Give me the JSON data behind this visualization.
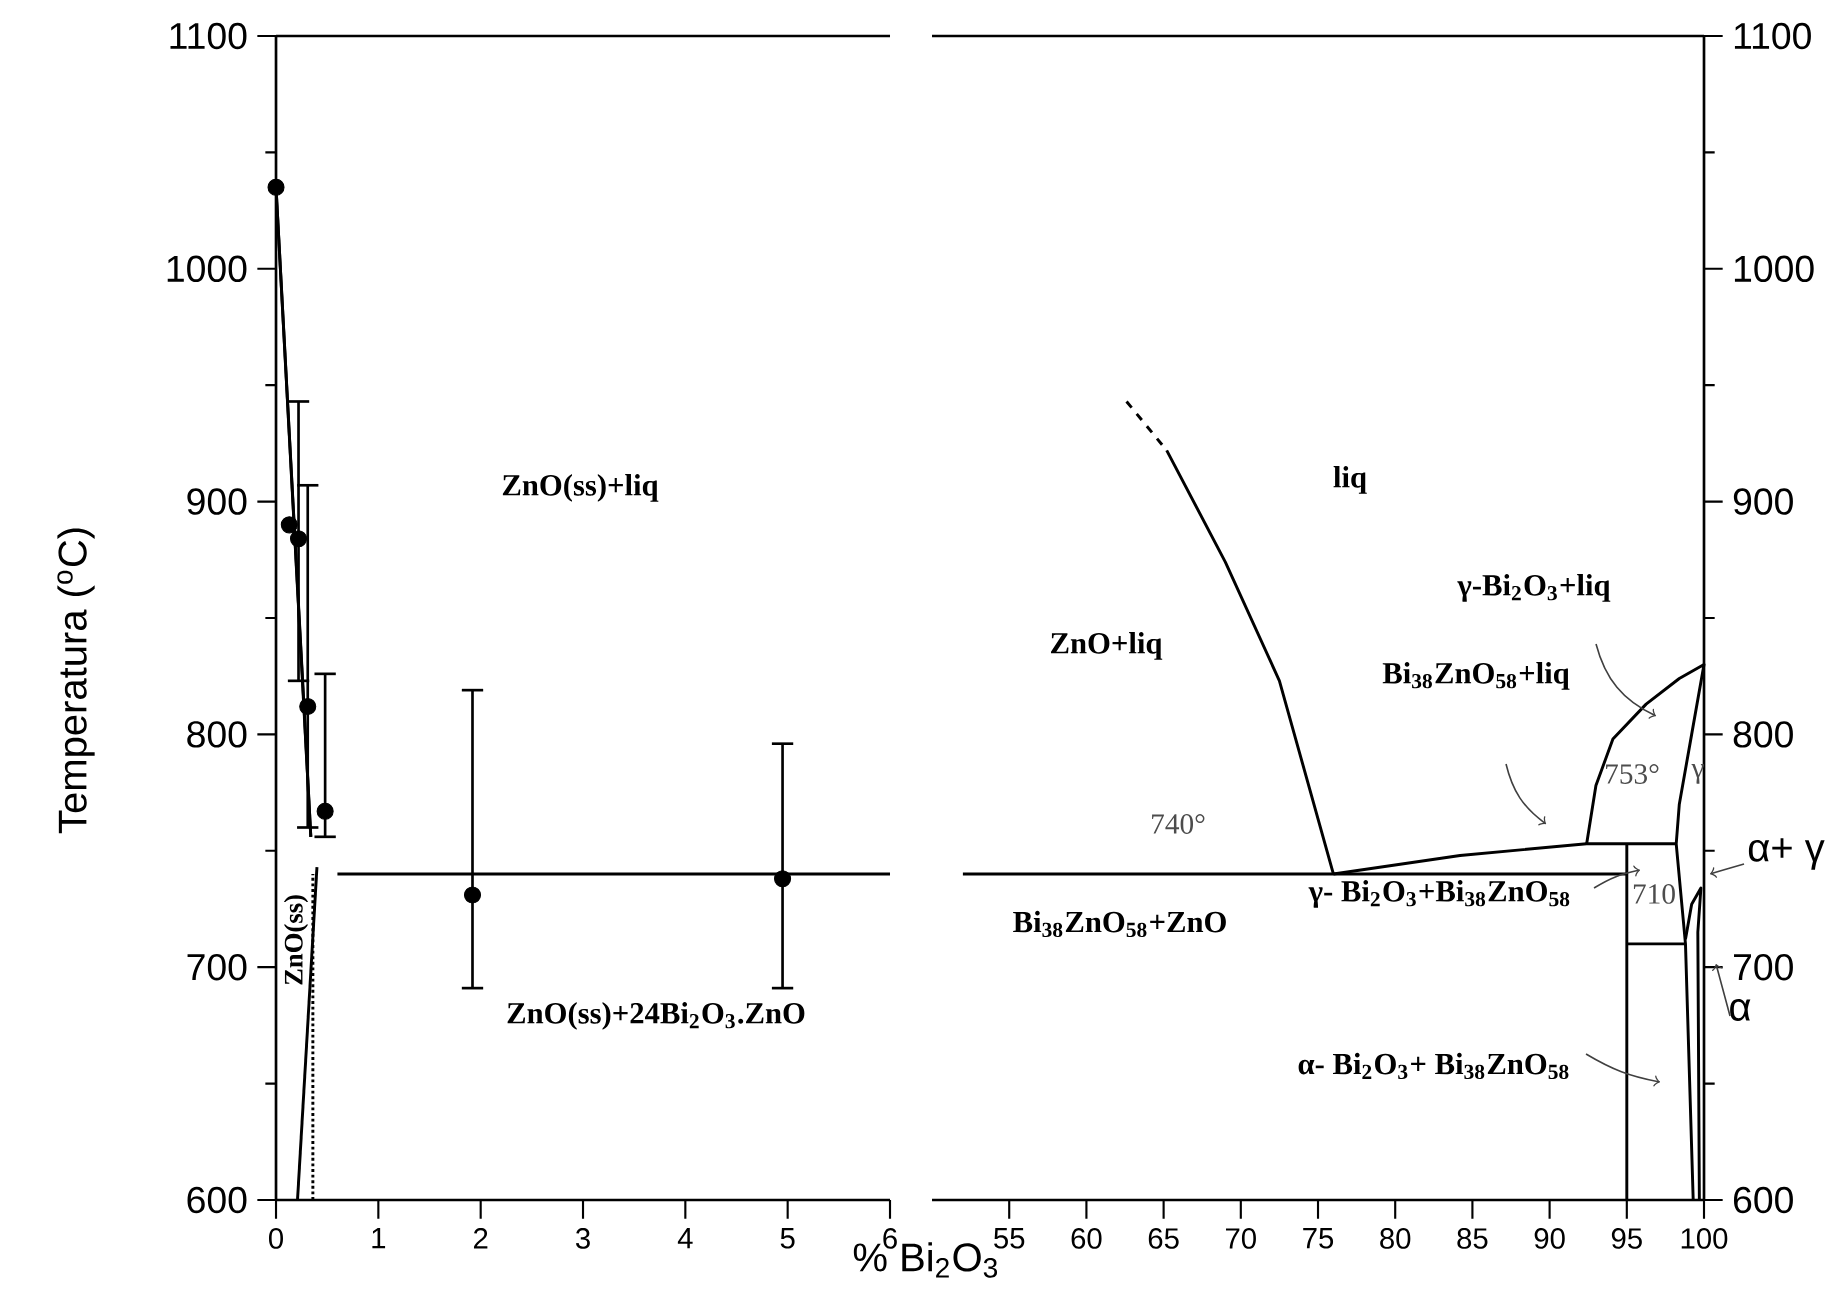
{
  "chart_data": [
    {
      "type": "line",
      "ylabel": "Temperatura ($^{o}$C)",
      "xlabel": "% Bi$_{2}$O$_{3}$",
      "xlim": [
        0,
        6
      ],
      "ylim": [
        600,
        1100
      ],
      "xticks": [
        0,
        1,
        2,
        3,
        4,
        5,
        6
      ],
      "yticks": [
        600,
        700,
        800,
        900,
        1000,
        1100
      ],
      "series": [
        {
          "type": "scatter",
          "marker": "circle",
          "color": "#000000",
          "x": [
            0,
            0.13,
            0.22,
            0.31,
            0.48,
            1.92,
            4.95
          ],
          "values": [
            1035,
            890,
            884,
            812,
            767,
            731,
            738
          ],
          "errors": [
            null,
            null,
            [
              823,
              943
            ],
            [
              760,
              907
            ],
            [
              756,
              826
            ],
            [
              691,
              819
            ],
            [
              691,
              796
            ]
          ]
        },
        {
          "color": "#000000",
          "x": [
            0,
            0.34
          ],
          "values": [
            1035,
            756
          ]
        },
        {
          "color": "#000000",
          "x": [
            0,
            0.26,
            0.34
          ],
          "values": [
            1035,
            823,
            756
          ]
        },
        {
          "color": "#000000",
          "x": [
            0.6,
            6
          ],
          "values": [
            740,
            740
          ]
        },
        {
          "color": "#000000",
          "x": [
            0.21,
            0.4
          ],
          "values": [
            600,
            743
          ]
        },
        {
          "color": "#000000",
          "line_style": "dotted",
          "x": [
            0.36,
            0.36
          ],
          "values": [
            600,
            740
          ]
        }
      ],
      "annotations": [
        "ZnO(ss)+liq",
        "ZnO(ss)",
        "ZnO(ss)+24Bi$_{2}$O$_{3}$.ZnO"
      ]
    },
    {
      "type": "line",
      "xlim": [
        50,
        100
      ],
      "ylim": [
        600,
        1100
      ],
      "xticks": [
        55,
        60,
        65,
        70,
        75,
        80,
        85,
        90,
        95,
        100
      ],
      "yticks": [
        600,
        700,
        800,
        900,
        1000,
        1100
      ],
      "series": [
        {
          "color": "#000000",
          "line_style": "dashed",
          "x": [
            62.6,
            65.2
          ],
          "values": [
            943,
            922
          ]
        },
        {
          "color": "#000000",
          "x": [
            65.2,
            69.0,
            72.5,
            76
          ],
          "values": [
            922,
            874,
            823,
            740
          ]
        },
        {
          "color": "#000000",
          "x": [
            52,
            95
          ],
          "values": [
            740,
            740
          ]
        },
        {
          "color": "#000000",
          "x": [
            76,
            84.2,
            92.4,
            98.2
          ],
          "values": [
            740,
            748,
            753,
            753
          ]
        },
        {
          "color": "#000000",
          "x": [
            92.4,
            93,
            94.1,
            96.25,
            98.4,
            100,
            99.2,
            98.4,
            98.2,
            98.8,
            99.3
          ],
          "values": [
            753,
            778,
            798,
            813,
            824,
            830,
            800,
            770,
            753,
            710,
            600
          ]
        },
        {
          "color": "#000000",
          "x": [
            95,
            95
          ],
          "values": [
            600,
            753
          ]
        },
        {
          "color": "#000000",
          "x": [
            95,
            98.8
          ],
          "values": [
            710,
            710
          ]
        },
        {
          "color": "#000000",
          "x": [
            98.8,
            99.2,
            99.8,
            99.6,
            99.7
          ],
          "values": [
            712,
            727,
            734,
            715,
            600
          ]
        }
      ],
      "annotations": [
        "liq",
        "ZnO+liq",
        "γ-Bi$_{2}$O$_{3}$+liq",
        "Bi$_{38}$ZnO$_{58}$+liq",
        "740°",
        "Bi$_{38}$ZnO$_{58}$+ZnO",
        "γ- Bi$_{2}$O$_{3}$+Bi$_{38}$ZnO$_{58}$",
        "710",
        "753°",
        "γ",
        "α- Bi$_{2}$O$_{3}$+ Bi$_{38}$ZnO$_{58}$",
        "α+ γ",
        "α"
      ]
    }
  ]
}
